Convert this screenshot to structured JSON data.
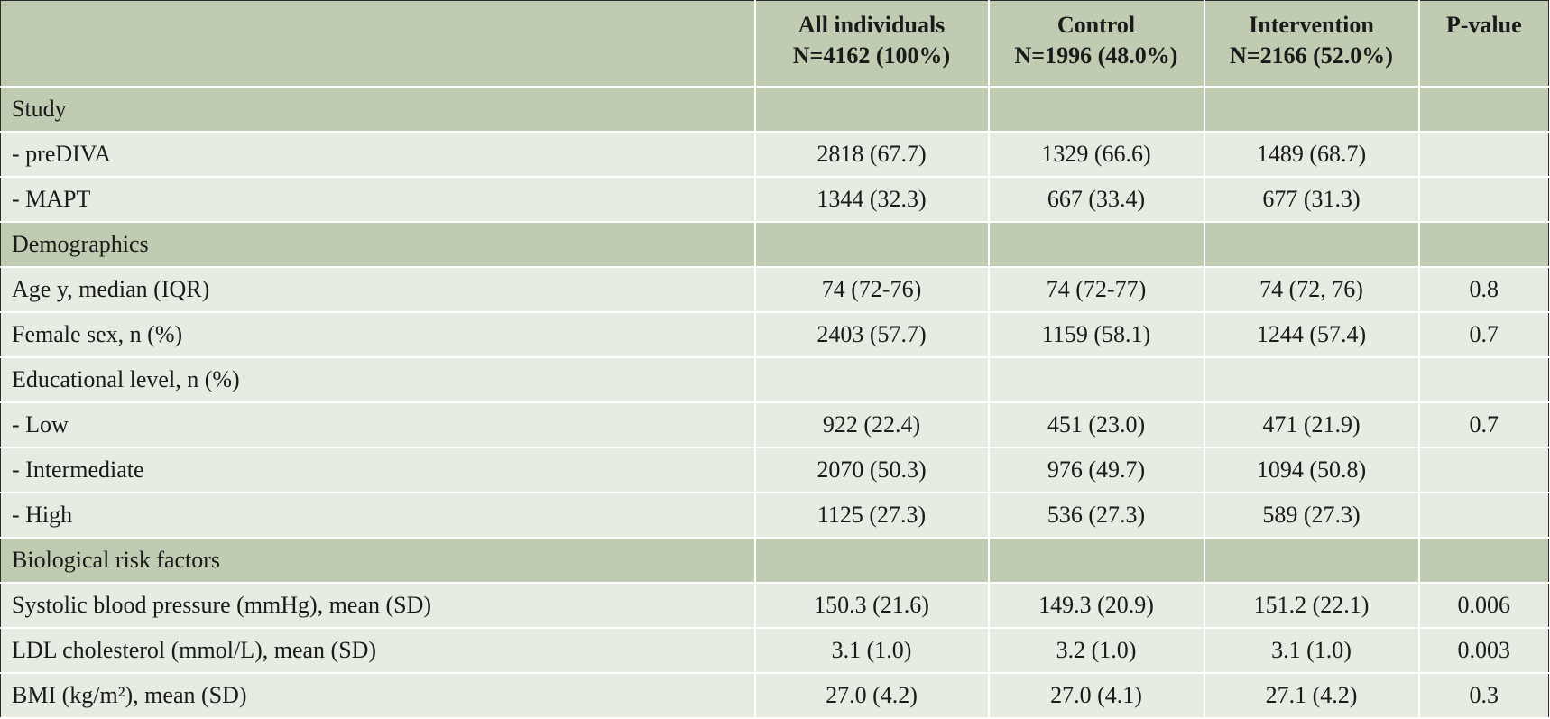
{
  "header": {
    "label": "",
    "columns": [
      {
        "line1": "All individuals",
        "line2": "N=4162 (100%)"
      },
      {
        "line1": "Control",
        "line2": "N=1996 (48.0%)"
      },
      {
        "line1": "Intervention",
        "line2": "N=2166 (52.0%)"
      },
      {
        "line1": "P-value",
        "line2": ""
      }
    ]
  },
  "rows": [
    {
      "type": "section",
      "label": "Study"
    },
    {
      "type": "row",
      "label": "- preDIVA",
      "all": "2818 (67.7)",
      "control": "1329 (66.6)",
      "intervention": "1489 (68.7)",
      "p": ""
    },
    {
      "type": "row",
      "label": "- MAPT",
      "all": "1344 (32.3)",
      "control": "667 (33.4)",
      "intervention": "677 (31.3)",
      "p": ""
    },
    {
      "type": "section",
      "label": "Demographics"
    },
    {
      "type": "row",
      "label": "Age y, median (IQR)",
      "all": "74 (72-76)",
      "control": "74 (72-77)",
      "intervention": "74 (72, 76)",
      "p": "0.8"
    },
    {
      "type": "row",
      "label": "Female sex, n (%)",
      "all": "2403 (57.7)",
      "control": "1159 (58.1)",
      "intervention": "1244 (57.4)",
      "p": "0.7"
    },
    {
      "type": "row",
      "label": "Educational level, n (%)",
      "all": "",
      "control": "",
      "intervention": "",
      "p": ""
    },
    {
      "type": "row",
      "label": "- Low",
      "all": "922 (22.4)",
      "control": "451 (23.0)",
      "intervention": "471 (21.9)",
      "p": "0.7"
    },
    {
      "type": "row",
      "label": "- Intermediate",
      "all": "2070 (50.3)",
      "control": "976 (49.7)",
      "intervention": "1094 (50.8)",
      "p": ""
    },
    {
      "type": "row",
      "label": "- High",
      "all": "1125 (27.3)",
      "control": "536 (27.3)",
      "intervention": "589 (27.3)",
      "p": ""
    },
    {
      "type": "section",
      "label": "Biological risk factors"
    },
    {
      "type": "row",
      "label": "Systolic blood pressure (mmHg), mean (SD)",
      "all": "150.3 (21.6)",
      "control": "149.3 (20.9)",
      "intervention": "151.2 (22.1)",
      "p": "0.006"
    },
    {
      "type": "row",
      "label": "LDL cholesterol (mmol/L), mean (SD)",
      "all": "3.1 (1.0)",
      "control": "3.2 (1.0)",
      "intervention": "3.1 (1.0)",
      "p": "0.003"
    },
    {
      "type": "row",
      "label": "BMI (kg/m²), mean (SD)",
      "all": "27.0 (4.2)",
      "control": "27.0 (4.1)",
      "intervention": "27.1 (4.2)",
      "p": "0.3"
    }
  ]
}
